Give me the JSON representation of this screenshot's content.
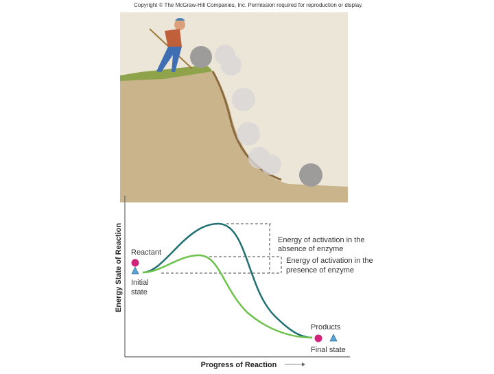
{
  "header": {
    "copyright": "Copyright © The McGraw-Hill Companies, Inc. Permission required for reproduction or display."
  },
  "graph": {
    "y_axis_label": "Energy State of Reaction",
    "x_axis_label": "Progress of Reaction",
    "reactant": "Reactant",
    "initial_state": [
      "Initial",
      "state"
    ],
    "products": "Products",
    "final_state": "Final state",
    "activation_without_enzyme": [
      "Energy of activation in the",
      "absence of enzyme"
    ],
    "activation_with_enzyme": [
      "Energy of activation in the",
      "presence of enzyme"
    ]
  }
}
